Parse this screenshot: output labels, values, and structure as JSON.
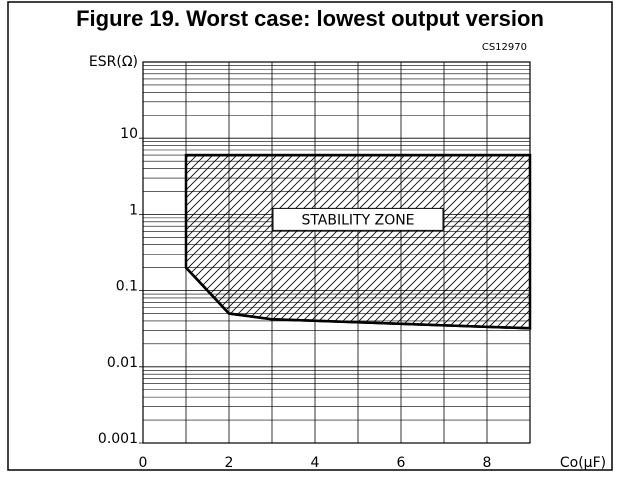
{
  "chart_data": {
    "type": "area",
    "title": "Figure 19. Worst case: lowest output version",
    "code": "CS12970",
    "y_label": "ESR(Ω)",
    "x_label": "Co(μF)",
    "xlim": [
      0,
      9
    ],
    "xticks": [
      0,
      2,
      4,
      6,
      8
    ],
    "ylim": [
      0.001,
      100
    ],
    "yticks": [
      0.001,
      0.01,
      0.1,
      1,
      10
    ],
    "log_y": true,
    "grid": true,
    "series": [
      {
        "name": "STABILITY ZONE",
        "color": "#000000",
        "x": [
          1,
          2,
          3,
          9
        ],
        "lower": [
          0.2,
          0.05,
          0.042,
          0.032
        ],
        "upper": [
          6,
          6,
          6,
          6
        ]
      }
    ]
  }
}
